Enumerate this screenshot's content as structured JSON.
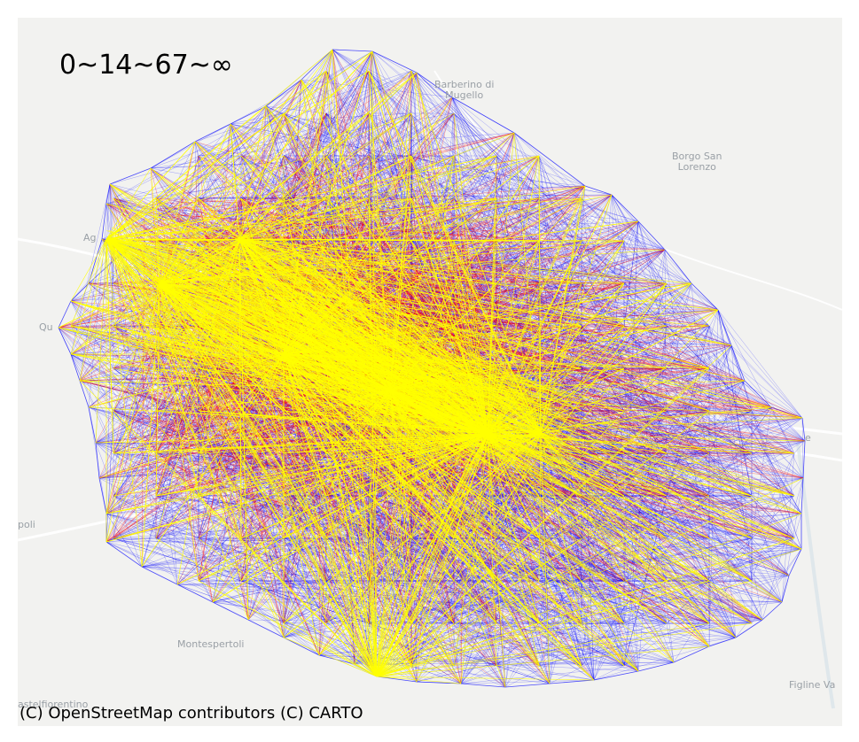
{
  "legend_title": "0~14~67~∞",
  "attribution": "(C) OpenStreetMap contributors (C) CARTO",
  "places": {
    "barberino": "Barberino di\nMugello",
    "borgo": "Borgo San\nLorenzo",
    "montespertoli": "Montespertoli",
    "figline": "Figline Va",
    "castelfiorentino": "astelfiorentino",
    "empoli": "poli",
    "quarrata": "Qu",
    "agliana": "Ag",
    "pontassieve": "e"
  },
  "colors": {
    "low": "#0000ff",
    "mid": "#ff0000",
    "high": "#ffff00",
    "basemap": "#f2f2f0"
  }
}
